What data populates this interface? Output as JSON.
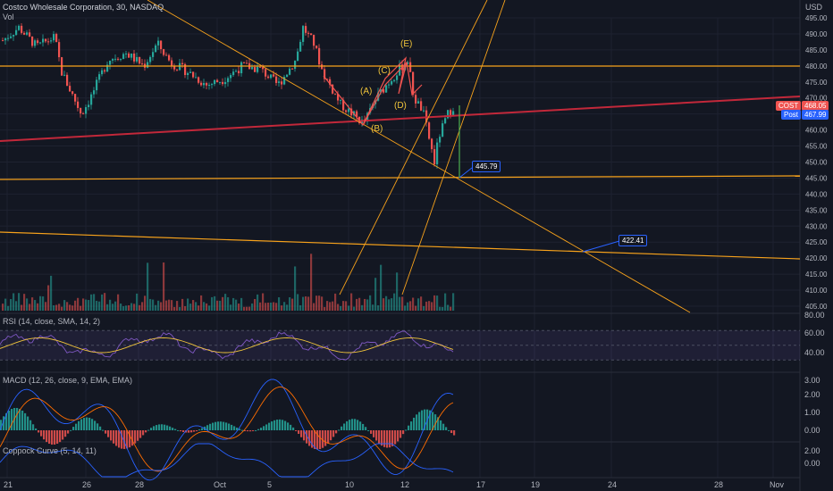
{
  "header": {
    "title": "Costco Wholesale Corporation, 30, NASDAQ",
    "volume_label": "Vol"
  },
  "price_axis": {
    "currency": "USD",
    "ticks": [
      "495.00",
      "490.00",
      "485.00",
      "480.00",
      "475.00",
      "470.00",
      "465.00",
      "460.00",
      "455.00",
      "450.00",
      "445.00",
      "440.00",
      "435.00",
      "430.00",
      "425.00",
      "420.00",
      "415.00",
      "410.00",
      "405.00"
    ]
  },
  "badges": {
    "symbol": "COST",
    "last": "468.05",
    "post_label": "Post",
    "post": "467.99",
    "target1": "445.79",
    "target2": "422.41"
  },
  "wave_labels": [
    "(A)",
    "(B)",
    "(C)",
    "(D)",
    "(E)"
  ],
  "rsi": {
    "title": "RSI (14, close, SMA, 14, 2)",
    "ticks": [
      "80.00",
      "60.00",
      "40.00"
    ]
  },
  "macd": {
    "title": "MACD (12, 26, close, 9, EMA, EMA)",
    "ticks": [
      "3.00",
      "2.00",
      "1.00",
      "0.00"
    ]
  },
  "coppock": {
    "title": "Coppock Curve (5, 14, 11)",
    "ticks": [
      "2.00",
      "0.00"
    ]
  },
  "time_axis": {
    "ticks": [
      "21",
      "26",
      "28",
      "Oct",
      "5",
      "10",
      "12",
      "17",
      "19",
      "24",
      "28",
      "Nov"
    ]
  },
  "colors": {
    "background": "#131722",
    "up": "#26a69a",
    "down": "#ef5350",
    "orange": "#f7a21b",
    "red_line": "#c2283a",
    "rsi_line": "#7e57c2",
    "rsi_sma": "#f0c43a",
    "macd_line": "#2962ff",
    "signal_line": "#ff6d00",
    "label_blue": "#2962ff"
  }
}
